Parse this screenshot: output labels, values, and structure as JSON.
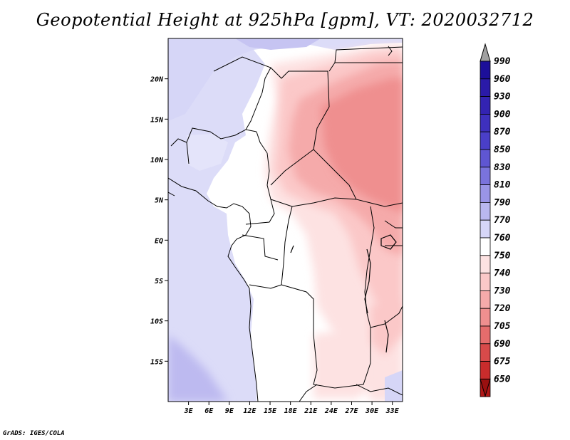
{
  "title": "Geopotential Height at 925hPa [gpm], VT: 2020032712",
  "credit": "GrADS: IGES/COLA",
  "colors": {
    "background": "#ffffff",
    "border": "#000000"
  },
  "map": {
    "lon_range": [
      0,
      34.5
    ],
    "lat_range": [
      -20,
      25
    ],
    "x_ticks": [
      {
        "lon": 3,
        "label": "3E"
      },
      {
        "lon": 6,
        "label": "6E"
      },
      {
        "lon": 9,
        "label": "9E"
      },
      {
        "lon": 12,
        "label": "12E"
      },
      {
        "lon": 15,
        "label": "15E"
      },
      {
        "lon": 18,
        "label": "18E"
      },
      {
        "lon": 21,
        "label": "21E"
      },
      {
        "lon": 24,
        "label": "24E"
      },
      {
        "lon": 27,
        "label": "27E"
      },
      {
        "lon": 30,
        "label": "30E"
      },
      {
        "lon": 33,
        "label": "33E"
      }
    ],
    "y_ticks": [
      {
        "lat": 20,
        "label": "20N"
      },
      {
        "lat": 15,
        "label": "15N"
      },
      {
        "lat": 10,
        "label": "10N"
      },
      {
        "lat": 5,
        "label": "5N"
      },
      {
        "lat": 0,
        "label": "EQ"
      },
      {
        "lat": -5,
        "label": "5S"
      },
      {
        "lat": -10,
        "label": "10S"
      },
      {
        "lat": -15,
        "label": "15S"
      }
    ]
  },
  "colorbar": {
    "levels": [
      {
        "label": "990",
        "color": "#1c0f99"
      },
      {
        "label": "960",
        "color": "#2a1aa8"
      },
      {
        "label": "930",
        "color": "#3323b2"
      },
      {
        "label": "900",
        "color": "#3e30be"
      },
      {
        "label": "870",
        "color": "#4a3fc8"
      },
      {
        "label": "850",
        "color": "#5f56d2"
      },
      {
        "label": "830",
        "color": "#7a73dc"
      },
      {
        "label": "810",
        "color": "#9a95e6"
      },
      {
        "label": "790",
        "color": "#b9b7ef"
      },
      {
        "label": "770",
        "color": "#d6d6f7"
      },
      {
        "label": "760",
        "color": "#ffffff"
      },
      {
        "label": "750",
        "color": "#fde2e2"
      },
      {
        "label": "740",
        "color": "#fbc8c8"
      },
      {
        "label": "730",
        "color": "#f5aaaa"
      },
      {
        "label": "720",
        "color": "#ef8f8f"
      },
      {
        "label": "705",
        "color": "#e56c6c"
      },
      {
        "label": "690",
        "color": "#d84a4a"
      },
      {
        "label": "675",
        "color": "#c92c2c"
      },
      {
        "label": "650",
        "color": "#b01616"
      }
    ],
    "top_arrow_color": "#a0a0a0",
    "bottom_arrow_color": "#9a1010"
  }
}
